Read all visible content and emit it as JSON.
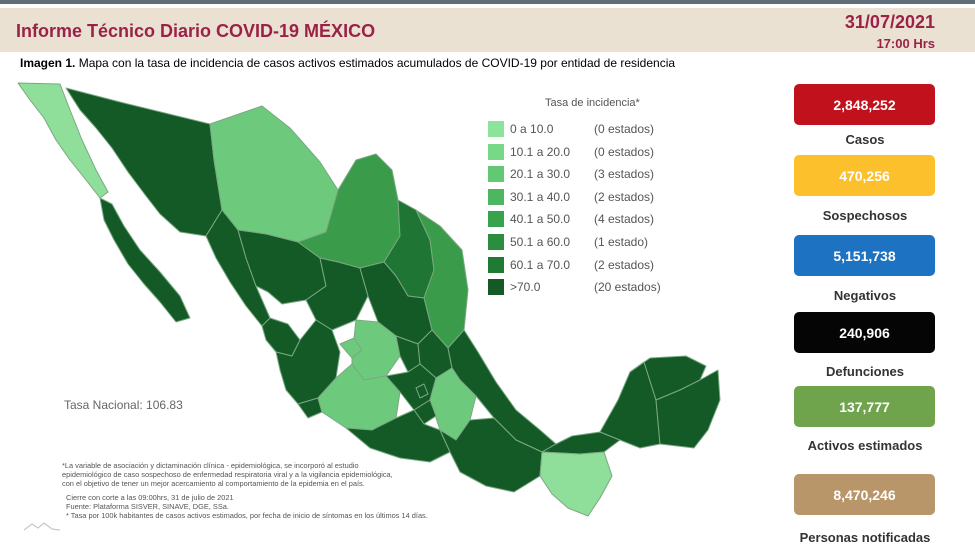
{
  "header": {
    "title": "Informe Técnico Diario COVID-19 MÉXICO",
    "date": "31/07/2021",
    "time": "17:00 Hrs"
  },
  "caption": {
    "bold": "Imagen 1.",
    "text": " Mapa con la tasa de incidencia de casos activos estimados acumulados de COVID-19 por entidad de residencia"
  },
  "legend": {
    "title": "Tasa de incidencia*",
    "items": [
      {
        "range": "0  a  10.0",
        "count": "(0 estados)",
        "color": "#8ee39b"
      },
      {
        "range": "10.1 a 20.0",
        "count": "(0 estados)",
        "color": "#78d888"
      },
      {
        "range": "20.1 a 30.0",
        "count": "(3 estados)",
        "color": "#62c874"
      },
      {
        "range": "30.1 a 40.0",
        "count": "(2 estados)",
        "color": "#4db660"
      },
      {
        "range": "40.1 a 50.0",
        "count": "(4 estados)",
        "color": "#38a24d"
      },
      {
        "range": "50.1 a 60.0",
        "count": "(1 estado)",
        "color": "#2a8e3e"
      },
      {
        "range": "60.1 a 70.0",
        "count": "(2 estados)",
        "color": "#1f7a33"
      },
      {
        "range": ">70.0",
        "count": "(20 estados)",
        "color": "#145a26"
      }
    ]
  },
  "tasa_nacional": "Tasa Nacional: 106.83",
  "notes": [
    "*La variable de asociación y dictaminación clínica - epidemiológica, se incorporó al estudio",
    "epidemiológico de caso sospechoso de enfermedad respiratoria viral y a la vigilancia epidemiológica,",
    "con el objetivo de tener un mejor acercamiento al comportamiento de la epidemia en el país.",
    "Cierre con corte a las 09:00hrs, 31 de julio de 2021",
    "Fuente: Plataforma SISVER, SINAVE, DGE, SSa.",
    "* Tasa por 100k habitantes de casos activos estimados, por fecha de inicio de síntomas en los últimos 14 días."
  ],
  "stats": [
    {
      "value": "2,848,252",
      "label": "Casos",
      "color": "#c0111c"
    },
    {
      "value": "470,256",
      "label": "Sospechosos",
      "color": "#fcc02c"
    },
    {
      "value": "5,151,738",
      "label": "Negativos",
      "color": "#1d72c2"
    },
    {
      "value": "240,906",
      "label": "Defunciones",
      "color": "#050505"
    },
    {
      "value": "137,777",
      "label": "Activos estimados",
      "color": "#6fa44d"
    },
    {
      "value": "8,470,246",
      "label": "Personas notificadas",
      "color": "#b9956a"
    }
  ],
  "map_colors": {
    "very_light": "#8fdf9a",
    "light": "#6dca7d",
    "medium": "#3a9c4a",
    "dark": "#1f7533",
    "darkest": "#145a26",
    "border": "#6b9a72"
  }
}
